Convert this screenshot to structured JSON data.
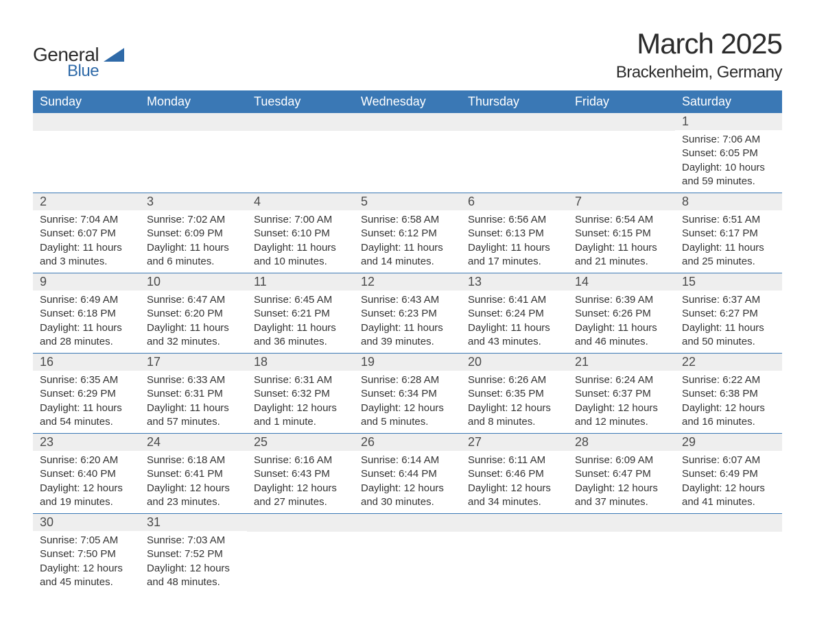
{
  "logo": {
    "text1": "General",
    "text2": "Blue"
  },
  "title": "March 2025",
  "location": "Brackenheim, Germany",
  "colors": {
    "header_bg": "#3a78b5",
    "header_text": "#ffffff",
    "daynum_bg": "#eeeeee",
    "row_border": "#3a78b5",
    "body_text": "#333333",
    "logo_primary": "#2b2b2b",
    "logo_accent": "#2f6aa8",
    "page_bg": "#ffffff"
  },
  "typography": {
    "title_fontsize": 42,
    "location_fontsize": 24,
    "header_fontsize": 18,
    "daynum_fontsize": 18,
    "detail_fontsize": 15
  },
  "day_headers": [
    "Sunday",
    "Monday",
    "Tuesday",
    "Wednesday",
    "Thursday",
    "Friday",
    "Saturday"
  ],
  "labels": {
    "sunrise": "Sunrise:",
    "sunset": "Sunset:",
    "daylight": "Daylight:"
  },
  "weeks": [
    [
      null,
      null,
      null,
      null,
      null,
      null,
      {
        "n": "1",
        "sunrise": "7:06 AM",
        "sunset": "6:05 PM",
        "daylight": "10 hours and 59 minutes."
      }
    ],
    [
      {
        "n": "2",
        "sunrise": "7:04 AM",
        "sunset": "6:07 PM",
        "daylight": "11 hours and 3 minutes."
      },
      {
        "n": "3",
        "sunrise": "7:02 AM",
        "sunset": "6:09 PM",
        "daylight": "11 hours and 6 minutes."
      },
      {
        "n": "4",
        "sunrise": "7:00 AM",
        "sunset": "6:10 PM",
        "daylight": "11 hours and 10 minutes."
      },
      {
        "n": "5",
        "sunrise": "6:58 AM",
        "sunset": "6:12 PM",
        "daylight": "11 hours and 14 minutes."
      },
      {
        "n": "6",
        "sunrise": "6:56 AM",
        "sunset": "6:13 PM",
        "daylight": "11 hours and 17 minutes."
      },
      {
        "n": "7",
        "sunrise": "6:54 AM",
        "sunset": "6:15 PM",
        "daylight": "11 hours and 21 minutes."
      },
      {
        "n": "8",
        "sunrise": "6:51 AM",
        "sunset": "6:17 PM",
        "daylight": "11 hours and 25 minutes."
      }
    ],
    [
      {
        "n": "9",
        "sunrise": "6:49 AM",
        "sunset": "6:18 PM",
        "daylight": "11 hours and 28 minutes."
      },
      {
        "n": "10",
        "sunrise": "6:47 AM",
        "sunset": "6:20 PM",
        "daylight": "11 hours and 32 minutes."
      },
      {
        "n": "11",
        "sunrise": "6:45 AM",
        "sunset": "6:21 PM",
        "daylight": "11 hours and 36 minutes."
      },
      {
        "n": "12",
        "sunrise": "6:43 AM",
        "sunset": "6:23 PM",
        "daylight": "11 hours and 39 minutes."
      },
      {
        "n": "13",
        "sunrise": "6:41 AM",
        "sunset": "6:24 PM",
        "daylight": "11 hours and 43 minutes."
      },
      {
        "n": "14",
        "sunrise": "6:39 AM",
        "sunset": "6:26 PM",
        "daylight": "11 hours and 46 minutes."
      },
      {
        "n": "15",
        "sunrise": "6:37 AM",
        "sunset": "6:27 PM",
        "daylight": "11 hours and 50 minutes."
      }
    ],
    [
      {
        "n": "16",
        "sunrise": "6:35 AM",
        "sunset": "6:29 PM",
        "daylight": "11 hours and 54 minutes."
      },
      {
        "n": "17",
        "sunrise": "6:33 AM",
        "sunset": "6:31 PM",
        "daylight": "11 hours and 57 minutes."
      },
      {
        "n": "18",
        "sunrise": "6:31 AM",
        "sunset": "6:32 PM",
        "daylight": "12 hours and 1 minute."
      },
      {
        "n": "19",
        "sunrise": "6:28 AM",
        "sunset": "6:34 PM",
        "daylight": "12 hours and 5 minutes."
      },
      {
        "n": "20",
        "sunrise": "6:26 AM",
        "sunset": "6:35 PM",
        "daylight": "12 hours and 8 minutes."
      },
      {
        "n": "21",
        "sunrise": "6:24 AM",
        "sunset": "6:37 PM",
        "daylight": "12 hours and 12 minutes."
      },
      {
        "n": "22",
        "sunrise": "6:22 AM",
        "sunset": "6:38 PM",
        "daylight": "12 hours and 16 minutes."
      }
    ],
    [
      {
        "n": "23",
        "sunrise": "6:20 AM",
        "sunset": "6:40 PM",
        "daylight": "12 hours and 19 minutes."
      },
      {
        "n": "24",
        "sunrise": "6:18 AM",
        "sunset": "6:41 PM",
        "daylight": "12 hours and 23 minutes."
      },
      {
        "n": "25",
        "sunrise": "6:16 AM",
        "sunset": "6:43 PM",
        "daylight": "12 hours and 27 minutes."
      },
      {
        "n": "26",
        "sunrise": "6:14 AM",
        "sunset": "6:44 PM",
        "daylight": "12 hours and 30 minutes."
      },
      {
        "n": "27",
        "sunrise": "6:11 AM",
        "sunset": "6:46 PM",
        "daylight": "12 hours and 34 minutes."
      },
      {
        "n": "28",
        "sunrise": "6:09 AM",
        "sunset": "6:47 PM",
        "daylight": "12 hours and 37 minutes."
      },
      {
        "n": "29",
        "sunrise": "6:07 AM",
        "sunset": "6:49 PM",
        "daylight": "12 hours and 41 minutes."
      }
    ],
    [
      {
        "n": "30",
        "sunrise": "7:05 AM",
        "sunset": "7:50 PM",
        "daylight": "12 hours and 45 minutes."
      },
      {
        "n": "31",
        "sunrise": "7:03 AM",
        "sunset": "7:52 PM",
        "daylight": "12 hours and 48 minutes."
      },
      null,
      null,
      null,
      null,
      null
    ]
  ]
}
